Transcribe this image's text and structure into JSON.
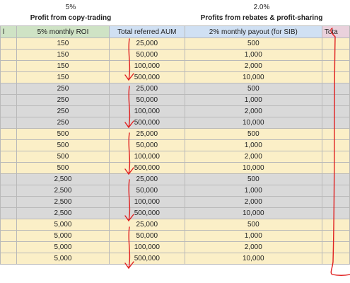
{
  "top": {
    "pct_left": "5%",
    "pct_right": "2.0%",
    "title_left": "Profit from copy-trading",
    "title_right": "Profits from rebates & profit-sharing"
  },
  "header": {
    "col0": "l",
    "col1": "5% monthly ROI",
    "col2": "Total referred AUM",
    "col3": "2% monthly payout (for SIB)",
    "col4": "Tota"
  },
  "rows": [
    {
      "roi": "150",
      "aum": "25,000",
      "payout": "500",
      "band": "y"
    },
    {
      "roi": "150",
      "aum": "50,000",
      "payout": "1,000",
      "band": "y"
    },
    {
      "roi": "150",
      "aum": "100,000",
      "payout": "2,000",
      "band": "y"
    },
    {
      "roi": "150",
      "aum": "500,000",
      "payout": "10,000",
      "band": "y"
    },
    {
      "roi": "250",
      "aum": "25,000",
      "payout": "500",
      "band": "g"
    },
    {
      "roi": "250",
      "aum": "50,000",
      "payout": "1,000",
      "band": "g"
    },
    {
      "roi": "250",
      "aum": "100,000",
      "payout": "2,000",
      "band": "g"
    },
    {
      "roi": "250",
      "aum": "500,000",
      "payout": "10,000",
      "band": "g"
    },
    {
      "roi": "500",
      "aum": "25,000",
      "payout": "500",
      "band": "y"
    },
    {
      "roi": "500",
      "aum": "50,000",
      "payout": "1,000",
      "band": "y"
    },
    {
      "roi": "500",
      "aum": "100,000",
      "payout": "2,000",
      "band": "y"
    },
    {
      "roi": "500",
      "aum": "500,000",
      "payout": "10,000",
      "band": "y"
    },
    {
      "roi": "2,500",
      "aum": "25,000",
      "payout": "500",
      "band": "g"
    },
    {
      "roi": "2,500",
      "aum": "50,000",
      "payout": "1,000",
      "band": "g"
    },
    {
      "roi": "2,500",
      "aum": "100,000",
      "payout": "2,000",
      "band": "g"
    },
    {
      "roi": "2,500",
      "aum": "500,000",
      "payout": "10,000",
      "band": "g"
    },
    {
      "roi": "5,000",
      "aum": "25,000",
      "payout": "500",
      "band": "y"
    },
    {
      "roi": "5,000",
      "aum": "50,000",
      "payout": "1,000",
      "band": "y"
    },
    {
      "roi": "5,000",
      "aum": "100,000",
      "payout": "2,000",
      "band": "y"
    },
    {
      "roi": "5,000",
      "aum": "500,000",
      "payout": "10,000",
      "band": "y"
    }
  ],
  "annotation_color": "#e02020"
}
